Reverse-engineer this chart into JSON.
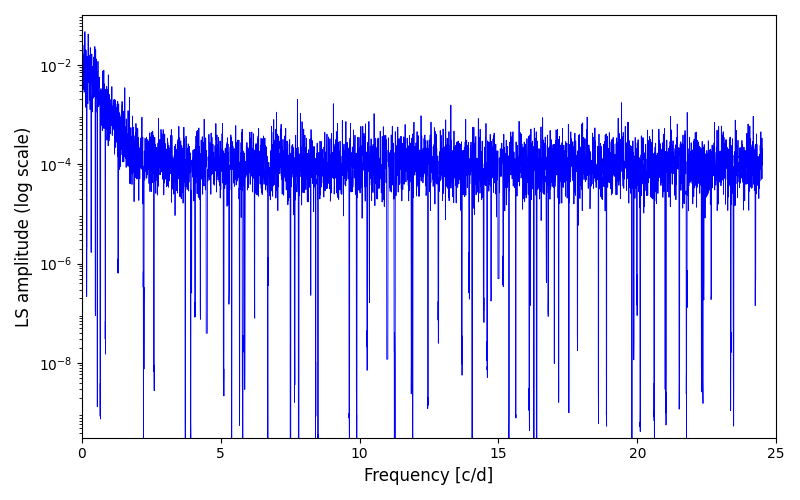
{
  "title": "",
  "xlabel": "Frequency [c/d]",
  "ylabel": "LS amplitude (log scale)",
  "line_color": "#0000ff",
  "line_width": 0.6,
  "xlim": [
    0,
    25
  ],
  "ylim_log_min": -9.5,
  "ylim_log_max": -1.0,
  "freq_min": 0.0,
  "freq_max": 24.5,
  "n_points": 5000,
  "seed": 7,
  "background_color": "#ffffff",
  "figsize": [
    8.0,
    5.0
  ],
  "dpi": 100,
  "yticks": [
    1e-08,
    1e-06,
    0.0001,
    0.01
  ],
  "xticks": [
    0,
    5,
    10,
    15,
    20,
    25
  ]
}
